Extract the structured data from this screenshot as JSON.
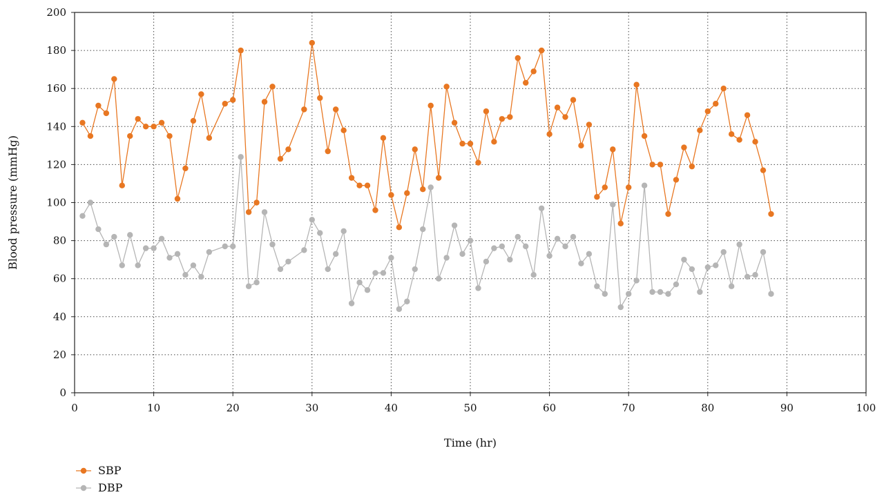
{
  "chart_data": {
    "type": "line",
    "title": "",
    "xlabel": "Time (hr)",
    "ylabel": "Blood pressure (mmHg)",
    "xlim": [
      0,
      100
    ],
    "ylim": [
      0,
      200
    ],
    "xticks": [
      0,
      10,
      20,
      30,
      40,
      50,
      60,
      70,
      80,
      90,
      100
    ],
    "yticks": [
      0,
      20,
      40,
      60,
      80,
      100,
      120,
      140,
      160,
      180,
      200
    ],
    "grid": true,
    "legend_position": "bottom-left",
    "x": [
      1,
      2,
      3,
      4,
      5,
      6,
      7,
      8,
      9,
      10,
      11,
      12,
      13,
      14,
      15,
      16,
      17,
      19,
      20,
      21,
      22,
      23,
      24,
      25,
      26,
      27,
      29,
      30,
      31,
      32,
      33,
      34,
      35,
      36,
      37,
      38,
      39,
      40,
      41,
      42,
      43,
      44,
      45,
      46,
      47,
      48,
      49,
      50,
      51,
      52,
      53,
      54,
      55,
      56,
      57,
      58,
      59,
      60,
      61,
      62,
      63,
      64,
      65,
      66,
      67,
      68,
      69,
      70,
      71,
      72,
      73,
      74,
      75,
      76,
      77,
      78,
      79,
      80,
      81,
      82,
      83,
      84,
      85,
      86,
      87,
      88
    ],
    "series": [
      {
        "name": "SBP",
        "color": "#e87722",
        "values": [
          142,
          135,
          151,
          147,
          165,
          109,
          135,
          144,
          140,
          140,
          142,
          135,
          102,
          118,
          143,
          157,
          134,
          152,
          154,
          180,
          95,
          100,
          153,
          161,
          123,
          128,
          149,
          184,
          155,
          127,
          149,
          138,
          113,
          109,
          109,
          96,
          134,
          104,
          87,
          105,
          128,
          107,
          151,
          113,
          161,
          142,
          131,
          131,
          121,
          148,
          132,
          144,
          145,
          176,
          163,
          169,
          180,
          136,
          150,
          145,
          154,
          130,
          141,
          103,
          108,
          128,
          89,
          108,
          162,
          135,
          120,
          120,
          94,
          112,
          129,
          119,
          138,
          148,
          152,
          160,
          136,
          133,
          146,
          132,
          117,
          94
        ]
      },
      {
        "name": "DBP",
        "color": "#b5b5b5",
        "values": [
          93,
          100,
          86,
          78,
          82,
          67,
          83,
          67,
          76,
          76,
          81,
          71,
          73,
          62,
          67,
          61,
          74,
          77,
          77,
          124,
          56,
          58,
          95,
          78,
          65,
          69,
          75,
          91,
          84,
          65,
          73,
          85,
          47,
          58,
          54,
          63,
          63,
          71,
          44,
          48,
          65,
          86,
          108,
          60,
          71,
          88,
          73,
          80,
          55,
          69,
          76,
          77,
          70,
          82,
          77,
          62,
          97,
          72,
          81,
          77,
          82,
          68,
          73,
          56,
          52,
          99,
          45,
          52,
          59,
          109,
          53,
          53,
          52,
          57,
          70,
          65,
          53,
          66,
          67,
          74,
          56,
          78,
          61,
          62,
          74,
          52
        ]
      }
    ]
  }
}
